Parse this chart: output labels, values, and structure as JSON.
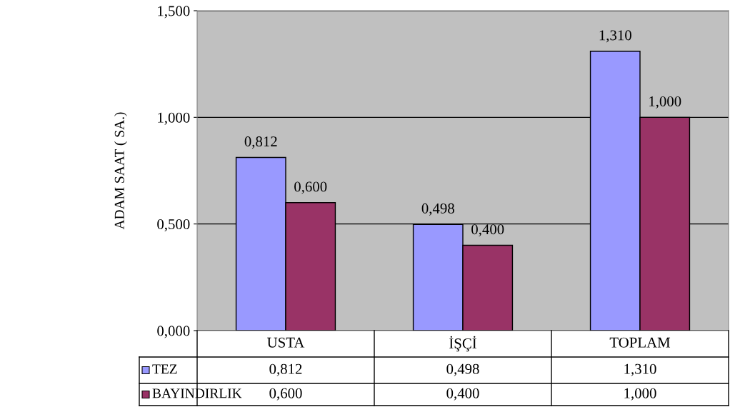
{
  "chart_data": {
    "type": "bar",
    "ylabel": "ADAM SAAT ( SA.)",
    "categories": [
      "USTA",
      "İŞÇİ",
      "TOPLAM"
    ],
    "series": [
      {
        "name": "TEZ",
        "color": "#9999ff",
        "values": [
          0.812,
          0.498,
          1.31
        ],
        "value_labels": [
          "0,812",
          "0,498",
          "1,310"
        ]
      },
      {
        "name": "BAYINDIRLIK",
        "color": "#993366",
        "values": [
          0.6,
          0.4,
          1.0
        ],
        "value_labels": [
          "0,600",
          "0,400",
          "1,000"
        ]
      }
    ],
    "ylim": [
      0,
      1.5
    ],
    "yticks": [
      {
        "value": 0,
        "label": "0,000"
      },
      {
        "value": 0.5,
        "label": "0,500"
      },
      {
        "value": 1.0,
        "label": "1,000"
      },
      {
        "value": 1.5,
        "label": "1,500"
      }
    ],
    "grid": "y",
    "legend": "bottom left"
  }
}
